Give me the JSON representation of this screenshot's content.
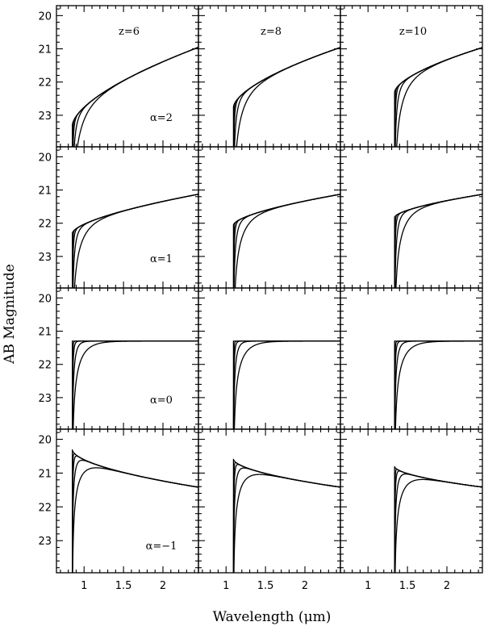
{
  "chart_data": {
    "type": "line",
    "xlabel": "Wavelength (μm)",
    "ylabel": "AB Magnitude",
    "xlim": [
      0.65,
      2.45
    ],
    "ylim": [
      23.95,
      19.7
    ],
    "y_inverted": true,
    "x_ticks": [
      1,
      1.5,
      2
    ],
    "x_tick_labels": [
      "1",
      "1.5",
      "2"
    ],
    "y_ticks": [
      20,
      21,
      22,
      23
    ],
    "y_tick_labels": [
      "20",
      "21",
      "22",
      "23"
    ],
    "grid": false,
    "columns": [
      {
        "label": "z=6",
        "z": 6,
        "break_um": 0.851
      },
      {
        "label": "z=8",
        "z": 8,
        "break_um": 1.094
      },
      {
        "label": "z=10",
        "z": 10,
        "break_um": 1.337
      }
    ],
    "rows": [
      {
        "label": "α=2",
        "alpha": 2,
        "mag_at_break": [
          23.3,
          22.75,
          22.3
        ],
        "mag_at_2_4um": 21.0
      },
      {
        "label": "α=1",
        "alpha": 1,
        "mag_at_break": [
          22.3,
          22.05,
          21.82
        ],
        "mag_at_2_4um": 21.15
      },
      {
        "label": "α=0",
        "alpha": 0,
        "mag_at_break": [
          21.3,
          21.3,
          21.3
        ],
        "mag_at_2_4um": 21.3
      },
      {
        "label": "α=−1",
        "alpha": -1,
        "mag_at_break": [
          20.3,
          20.58,
          20.8
        ],
        "mag_at_2_4um": 21.4
      }
    ],
    "curves_per_panel": 5,
    "break_softening_um": [
      0.0,
      0.01,
      0.025,
      0.07,
      0.22
    ]
  }
}
